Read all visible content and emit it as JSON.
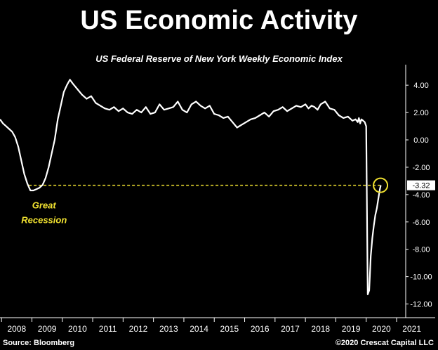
{
  "title": "US Economic Activity",
  "subtitle": "US Federal Reserve of New York Weekly Economic Index",
  "footer": {
    "source": "Source: Bloomberg",
    "copyright": "©2020 Crescat Capital LLC"
  },
  "colors": {
    "background": "#000000",
    "line": "#ffffff",
    "highlight": "#f0e130",
    "axis": "#ffffff"
  },
  "chart_data": {
    "type": "line",
    "title": "US Economic Activity",
    "subtitle": "US Federal Reserve of New York Weekly Economic Index",
    "xlabel": "",
    "ylabel": "",
    "xlim": [
      2007.95,
      2021.3
    ],
    "ylim": [
      -13,
      5.5
    ],
    "x_ticks": [
      "2008",
      "2009",
      "2010",
      "2011",
      "2012",
      "2013",
      "2014",
      "2015",
      "2016",
      "2017",
      "2018",
      "2019",
      "2020",
      "2021"
    ],
    "y_ticks": [
      "4.00",
      "2.00",
      "0.00",
      "-2.00",
      "-4.00",
      "-6.00",
      "-8.00",
      "-10.00",
      "-12.00"
    ],
    "y_axis_position": "right",
    "grid": false,
    "series": [
      {
        "x": [
          2007.95,
          2008.05,
          2008.15,
          2008.25,
          2008.35,
          2008.45,
          2008.55,
          2008.65,
          2008.75,
          2008.85,
          2008.95,
          2009.05,
          2009.15,
          2009.25,
          2009.35,
          2009.45,
          2009.55,
          2009.65,
          2009.75,
          2009.85,
          2009.95,
          2010.05,
          2010.15,
          2010.25,
          2010.35,
          2010.5,
          2010.65,
          2010.8,
          2010.95,
          2011.1,
          2011.25,
          2011.4,
          2011.55,
          2011.7,
          2011.85,
          2012.0,
          2012.15,
          2012.3,
          2012.45,
          2012.6,
          2012.75,
          2012.9,
          2013.05,
          2013.2,
          2013.35,
          2013.5,
          2013.65,
          2013.8,
          2013.95,
          2014.1,
          2014.25,
          2014.4,
          2014.55,
          2014.7,
          2014.85,
          2015.0,
          2015.15,
          2015.3,
          2015.45,
          2015.6,
          2015.75,
          2015.9,
          2016.05,
          2016.2,
          2016.35,
          2016.5,
          2016.65,
          2016.8,
          2016.95,
          2017.1,
          2017.25,
          2017.4,
          2017.55,
          2017.7,
          2017.85,
          2018.0,
          2018.1,
          2018.2,
          2018.3,
          2018.4,
          2018.5,
          2018.65,
          2018.8,
          2018.95,
          2019.1,
          2019.25,
          2019.4,
          2019.55,
          2019.65,
          2019.72,
          2019.76,
          2019.8,
          2019.84,
          2019.9,
          2019.95,
          2020.0,
          2020.05,
          2020.1,
          2020.15,
          2020.2,
          2020.25,
          2020.3,
          2020.35,
          2020.4,
          2020.45,
          2020.48
        ],
        "y": [
          1.5,
          1.2,
          1.0,
          0.8,
          0.6,
          0.2,
          -0.5,
          -1.5,
          -2.5,
          -3.2,
          -3.7,
          -3.7,
          -3.6,
          -3.5,
          -3.3,
          -2.8,
          -2.0,
          -1.0,
          0.0,
          1.5,
          2.5,
          3.5,
          4.0,
          4.4,
          4.1,
          3.7,
          3.3,
          3.0,
          3.2,
          2.7,
          2.5,
          2.3,
          2.2,
          2.4,
          2.1,
          2.3,
          2.0,
          1.9,
          2.2,
          2.0,
          2.4,
          1.9,
          2.0,
          2.6,
          2.2,
          2.3,
          2.4,
          2.8,
          2.2,
          2.0,
          2.6,
          2.8,
          2.5,
          2.3,
          2.5,
          1.9,
          1.8,
          1.6,
          1.7,
          1.3,
          0.9,
          1.1,
          1.3,
          1.5,
          1.6,
          1.8,
          2.0,
          1.7,
          2.1,
          2.2,
          2.4,
          2.1,
          2.3,
          2.5,
          2.4,
          2.6,
          2.3,
          2.5,
          2.4,
          2.2,
          2.6,
          2.8,
          2.3,
          2.2,
          1.8,
          1.6,
          1.7,
          1.4,
          1.5,
          1.3,
          1.6,
          1.2,
          1.5,
          1.4,
          1.3,
          1.0,
          -11.3,
          -11.0,
          -8.5,
          -7.2,
          -6.3,
          -5.5,
          -5.0,
          -4.3,
          -3.6,
          -3.32
        ]
      }
    ],
    "reference_line": {
      "y": -3.32,
      "x_start": 2008.9,
      "x_end": 2020.47,
      "style": "dashed",
      "color": "#f0e130"
    },
    "annotations": [
      {
        "text": "Great",
        "x": 2009.4,
        "y": -5.0,
        "color": "#f0e130"
      },
      {
        "text": "Recession",
        "x": 2009.4,
        "y": -6.1,
        "color": "#f0e130"
      }
    ],
    "highlight": {
      "x": 2020.47,
      "y": -3.32,
      "shape": "circle",
      "color": "#f0e130"
    },
    "last_value_label": "-3.32"
  }
}
